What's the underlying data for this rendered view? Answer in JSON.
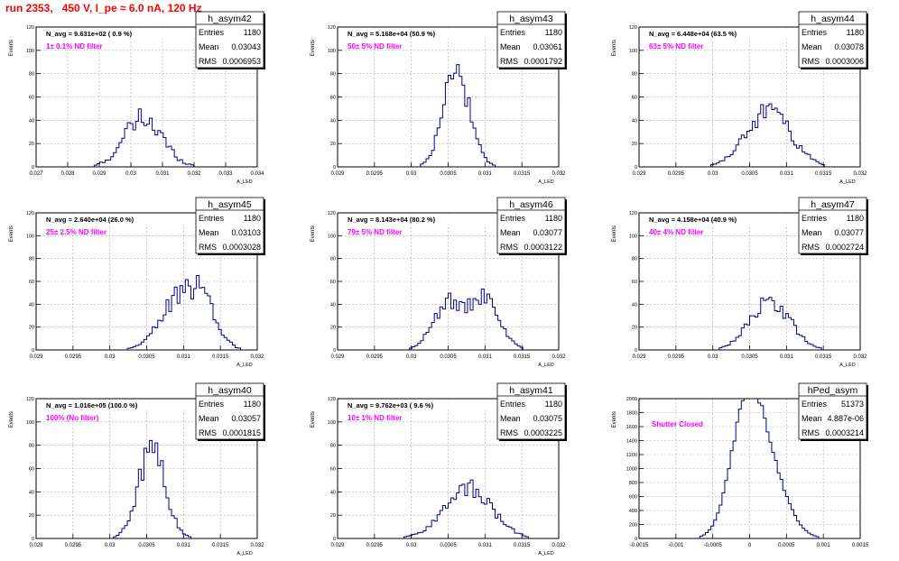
{
  "page_title": "run 2353,   450 V, I_pe ≈ 6.0 nA, 120 Hz",
  "colors": {
    "title": "#ff0000",
    "annotation": "#ff00ff",
    "histogram": "#00008b",
    "grid": "#aaaaaa",
    "frame": "#000000"
  },
  "stats_labels": {
    "entries": "Entries",
    "mean": "Mean",
    "rms": "RMS"
  },
  "chart_data": [
    {
      "type": "histogram",
      "name": "h_asym42",
      "navg": "N_avg = 9.631e+02 ( 0.9 %)",
      "note": "1± 0.1% ND filter",
      "entries": "1180",
      "mean": "0.03043",
      "rms": "0.0006953",
      "xlim": [
        0.027,
        0.034
      ],
      "xticks": [
        "0.027",
        "0.028",
        "0.029",
        "0.03",
        "0.031",
        "0.032",
        "0.033",
        "0.034"
      ],
      "ylim": [
        0,
        120
      ],
      "yticks": [
        "0",
        "20",
        "40",
        "60",
        "80",
        "100",
        "120"
      ],
      "ylabel": "Events",
      "xlabel": "A_LED",
      "shape": {
        "peaks": [
          [
            0.0304,
            41,
            0.0006
          ]
        ],
        "noise": 0.28
      }
    },
    {
      "type": "histogram",
      "name": "h_asym43",
      "navg": "N_avg = 5.168e+04 (50.9 %)",
      "note": "50± 5% ND filter",
      "entries": "1180",
      "mean": "0.03061",
      "rms": "0.0001792",
      "xlim": [
        0.029,
        0.032
      ],
      "xticks": [
        "0.029",
        "0.0295",
        "0.03",
        "0.0305",
        "0.031",
        "0.0315",
        "0.032"
      ],
      "ylim": [
        0,
        120
      ],
      "yticks": [
        "0",
        "20",
        "40",
        "60",
        "80",
        "100",
        "120"
      ],
      "ylabel": "Events",
      "xlabel": "A_LED",
      "shape": {
        "peaks": [
          [
            0.03061,
            80,
            0.00018
          ]
        ],
        "noise": 0.18
      }
    },
    {
      "type": "histogram",
      "name": "h_asym44",
      "navg": "N_avg = 6.448e+04 (63.5 %)",
      "note": "63± 5% ND filter",
      "entries": "1180",
      "mean": "0.03078",
      "rms": "0.0003006",
      "xlim": [
        0.029,
        0.032
      ],
      "xticks": [
        "0.029",
        "0.0295",
        "0.03",
        "0.0305",
        "0.031",
        "0.0315",
        "0.032"
      ],
      "ylim": [
        0,
        120
      ],
      "yticks": [
        "0",
        "20",
        "40",
        "60",
        "80",
        "100",
        "120"
      ],
      "ylabel": "Events",
      "xlabel": "A_LED",
      "shape": {
        "peaks": [
          [
            0.03076,
            47,
            0.0003
          ]
        ],
        "noise": 0.2
      }
    },
    {
      "type": "histogram",
      "name": "h_asym45",
      "navg": "N_avg = 2.640e+04 (26.0 %)",
      "note": "25± 2.5% ND filter",
      "entries": "1180",
      "mean": "0.03103",
      "rms": "0.0003028",
      "xlim": [
        0.029,
        0.032
      ],
      "xticks": [
        "0.029",
        "0.0295",
        "0.03",
        "0.0305",
        "0.031",
        "0.0315",
        "0.032"
      ],
      "ylim": [
        0,
        120
      ],
      "yticks": [
        "0",
        "20",
        "40",
        "60",
        "80",
        "100",
        "120"
      ],
      "ylabel": "Events",
      "xlabel": "A_LED",
      "shape": {
        "peaks": [
          [
            0.0309,
            38,
            0.00025
          ],
          [
            0.03125,
            36,
            0.0002
          ]
        ],
        "noise": 0.22
      }
    },
    {
      "type": "histogram",
      "name": "h_asym46",
      "navg": "N_avg = 8.143e+04 (80.2 %)",
      "note": "79± 5% ND filter",
      "entries": "1180",
      "mean": "0.03077",
      "rms": "0.0003122",
      "xlim": [
        0.029,
        0.032
      ],
      "xticks": [
        "0.029",
        "0.0295",
        "0.03",
        "0.0305",
        "0.031",
        "0.0315",
        "0.032"
      ],
      "ylim": [
        0,
        120
      ],
      "yticks": [
        "0",
        "20",
        "40",
        "60",
        "80",
        "100",
        "120"
      ],
      "ylabel": "Events",
      "xlabel": "A_LED",
      "shape": {
        "peaks": [
          [
            0.0305,
            40,
            0.0002
          ],
          [
            0.031,
            42,
            0.0002
          ]
        ],
        "noise": 0.22
      }
    },
    {
      "type": "histogram",
      "name": "h_asym47",
      "navg": "N_avg = 4.158e+04 (40.9 %)",
      "note": "40± 4% ND filter",
      "entries": "1180",
      "mean": "0.03077",
      "rms": "0.0002724",
      "xlim": [
        0.029,
        0.032
      ],
      "xticks": [
        "0.029",
        "0.0295",
        "0.03",
        "0.0305",
        "0.031",
        "0.0315",
        "0.032"
      ],
      "ylim": [
        0,
        120
      ],
      "yticks": [
        "0",
        "20",
        "40",
        "60",
        "80",
        "100",
        "120"
      ],
      "ylabel": "Events",
      "xlabel": "A_LED",
      "shape": {
        "peaks": [
          [
            0.03077,
            43,
            0.00027
          ]
        ],
        "noise": 0.2
      }
    },
    {
      "type": "histogram",
      "name": "h_asym40",
      "navg": "N_avg = 1.016e+05 (100.0 %)",
      "note": "100% (No filter)",
      "entries": "1180",
      "mean": "0.03057",
      "rms": "0.0001815",
      "xlim": [
        0.029,
        0.032
      ],
      "xticks": [
        "0.029",
        "0.0295",
        "0.03",
        "0.0305",
        "0.031",
        "0.0315",
        "0.032"
      ],
      "ylim": [
        0,
        120
      ],
      "yticks": [
        "0",
        "20",
        "40",
        "60",
        "80",
        "100",
        "120"
      ],
      "ylabel": "Events",
      "xlabel": "A_LED",
      "shape": {
        "peaks": [
          [
            0.03057,
            78,
            0.00018
          ]
        ],
        "noise": 0.18
      }
    },
    {
      "type": "histogram",
      "name": "h_asym41",
      "navg": "N_avg = 9.762e+03 ( 9.6 %)",
      "note": "10± 1% ND filter",
      "entries": "1180",
      "mean": "0.03075",
      "rms": "0.0003225",
      "xlim": [
        0.029,
        0.032
      ],
      "xticks": [
        "0.029",
        "0.0295",
        "0.03",
        "0.0305",
        "0.031",
        "0.0315",
        "0.032"
      ],
      "ylim": [
        0,
        120
      ],
      "yticks": [
        "0",
        "20",
        "40",
        "60",
        "80",
        "100",
        "120"
      ],
      "ylabel": "Events",
      "xlabel": "A_LED",
      "shape": {
        "peaks": [
          [
            0.03077,
            44,
            0.00032
          ]
        ],
        "noise": 0.2
      }
    },
    {
      "type": "histogram",
      "name": "hPed_asym",
      "navg": "",
      "note": "Shutter Closed",
      "entries": "51373",
      "mean": "4.887e-06",
      "rms": "0.0003214",
      "xlim": [
        -0.0015,
        0.0015
      ],
      "xticks": [
        "-0.0015",
        "-0.001",
        "-0.0005",
        "0",
        "0.0005",
        "0.001",
        "0.0015"
      ],
      "ylim": [
        0,
        2000
      ],
      "yticks": [
        "0",
        "200",
        "400",
        "600",
        "800",
        "1000",
        "1200",
        "1400",
        "1600",
        "1800",
        "2000"
      ],
      "ylabel": "Events",
      "xlabel": "",
      "shape": {
        "peaks": [
          [
            -3e-05,
            1870,
            0.00022
          ],
          [
            0.0003,
            720,
            0.00024
          ]
        ],
        "noise": 0.03
      }
    }
  ]
}
